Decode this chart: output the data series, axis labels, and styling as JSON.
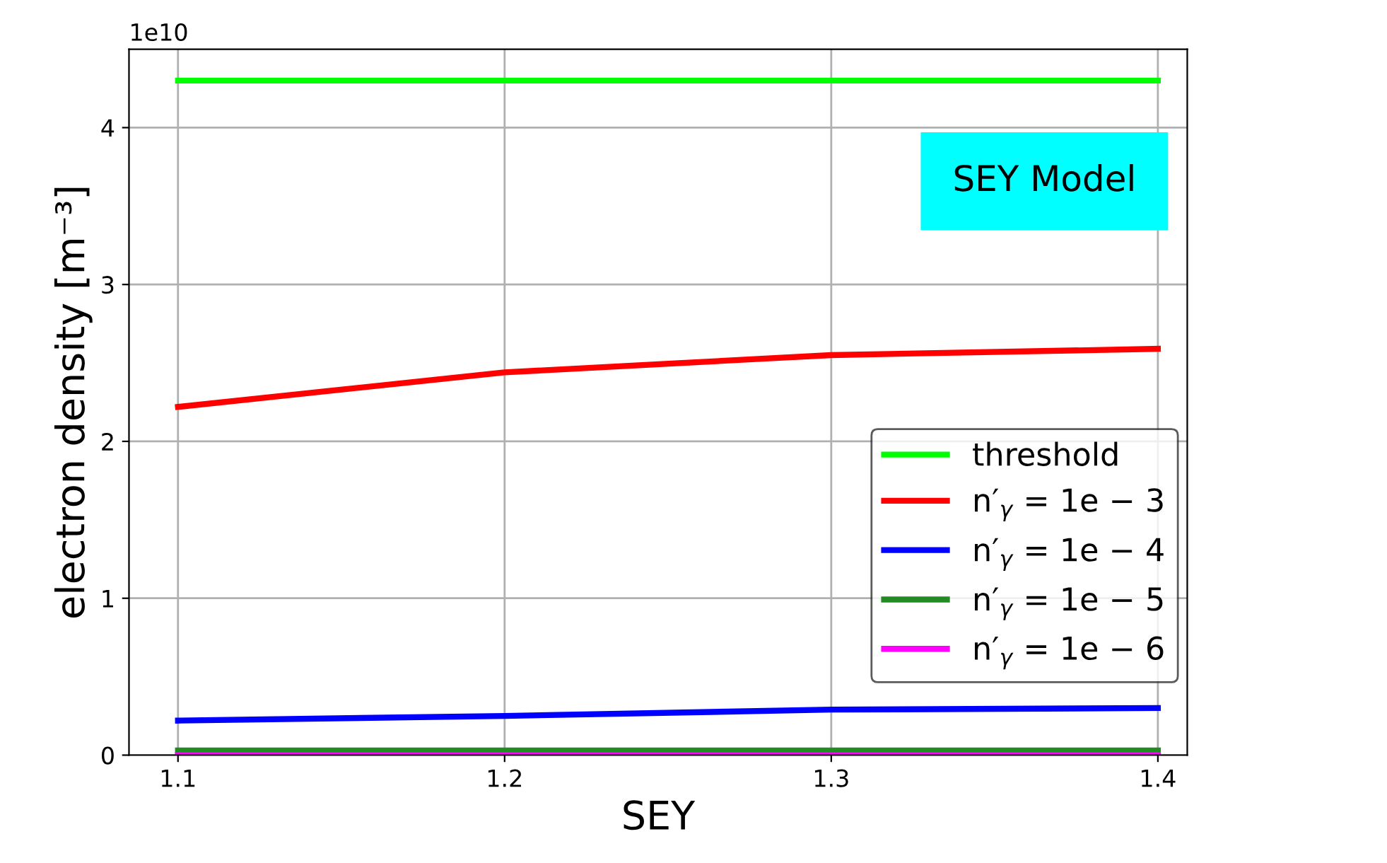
{
  "chart_data": {
    "type": "line",
    "xlabel": "SEY",
    "ylabel": "electron density [m⁻³]",
    "x": [
      1.1,
      1.2,
      1.3,
      1.4
    ],
    "series": [
      {
        "name": "threshold",
        "color": "#00ff00",
        "values": [
          4.3,
          4.3,
          4.3,
          4.3
        ]
      },
      {
        "name": "n′$_{γ}$ = 1e − 3",
        "color": "#ff0000",
        "values": [
          2.22,
          2.44,
          2.55,
          2.59
        ]
      },
      {
        "name": "n′$_{γ}$ = 1e − 4",
        "color": "#0000ff",
        "values": [
          0.22,
          0.25,
          0.29,
          0.3
        ]
      },
      {
        "name": "n′$_{γ}$ = 1e − 5",
        "color": "#228b22",
        "values": [
          0.03,
          0.03,
          0.03,
          0.03
        ]
      },
      {
        "name": "n′$_{γ}$ = 1e − 6",
        "color": "#ff00ff",
        "values": [
          0.0,
          0.0,
          0.0,
          0.0
        ]
      }
    ],
    "xlim": [
      1.085,
      1.409
    ],
    "ylim": [
      0,
      4.5
    ],
    "xticks": [
      1.1,
      1.2,
      1.3,
      1.4
    ],
    "yticks": [
      0,
      1,
      2,
      3,
      4
    ],
    "annotations": [
      "1e10",
      "SEY Model"
    ],
    "grid": true,
    "legend": "lower right",
    "marker": "none",
    "line_style": "solid"
  }
}
